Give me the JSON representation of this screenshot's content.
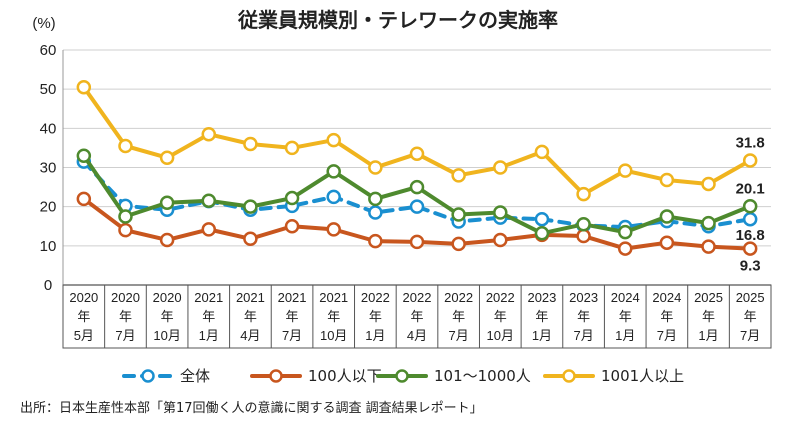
{
  "chart_data": {
    "type": "line",
    "title": "従業員規模別・テレワークの実施率",
    "ylabel": "(%)",
    "ylim": [
      0,
      60
    ],
    "yticks": [
      0,
      10,
      20,
      30,
      40,
      50,
      60
    ],
    "grid": true,
    "legend_position": "bottom",
    "categories": [
      [
        "2020",
        "年",
        "5月"
      ],
      [
        "2020",
        "年",
        "7月"
      ],
      [
        "2020",
        "年",
        "10月"
      ],
      [
        "2021",
        "年",
        "1月"
      ],
      [
        "2021",
        "年",
        "4月"
      ],
      [
        "2021",
        "年",
        "7月"
      ],
      [
        "2021",
        "年",
        "10月"
      ],
      [
        "2022",
        "年",
        "1月"
      ],
      [
        "2022",
        "年",
        "4月"
      ],
      [
        "2022",
        "年",
        "7月"
      ],
      [
        "2022",
        "年",
        "10月"
      ],
      [
        "2023",
        "年",
        "1月"
      ],
      [
        "2023",
        "年",
        "7月"
      ],
      [
        "2024",
        "年",
        "1月"
      ],
      [
        "2024",
        "年",
        "7月"
      ],
      [
        "2025",
        "年",
        "1月"
      ],
      [
        "2025",
        "年",
        "7月"
      ]
    ],
    "series": [
      {
        "name": "全体",
        "color": "#1a8fd0",
        "style": "dashed",
        "values": [
          31.5,
          20.2,
          19.2,
          21.4,
          19.2,
          20.2,
          22.5,
          18.5,
          20.0,
          16.2,
          17.2,
          16.8,
          15.2,
          14.8,
          16.3,
          15.0,
          16.8
        ],
        "end_label": "16.8"
      },
      {
        "name": "100人以下",
        "color": "#c8561e",
        "style": "solid",
        "values": [
          22.0,
          14.0,
          11.5,
          14.2,
          11.8,
          15.0,
          14.2,
          11.2,
          11.0,
          10.5,
          11.5,
          12.8,
          12.5,
          9.3,
          10.8,
          9.8,
          9.3
        ],
        "end_label": "9.3"
      },
      {
        "name": "101～1000人",
        "color": "#4e8a2e",
        "style": "solid",
        "values": [
          33.0,
          17.5,
          21.0,
          21.5,
          20.0,
          22.2,
          29.0,
          22.0,
          25.0,
          18.0,
          18.5,
          13.2,
          15.5,
          13.5,
          17.5,
          15.8,
          20.1
        ],
        "end_label": "20.1"
      },
      {
        "name": "1001人以上",
        "color": "#f0b41e",
        "style": "solid",
        "values": [
          50.5,
          35.5,
          32.5,
          38.5,
          36.0,
          35.0,
          37.0,
          30.0,
          33.5,
          28.0,
          30.0,
          34.0,
          23.2,
          29.2,
          26.8,
          25.8,
          31.8
        ],
        "end_label": "31.8"
      }
    ]
  },
  "source_note": "出所：日本生産性本部「第17回働く人の意識に関する調査 調査結果レポート」"
}
